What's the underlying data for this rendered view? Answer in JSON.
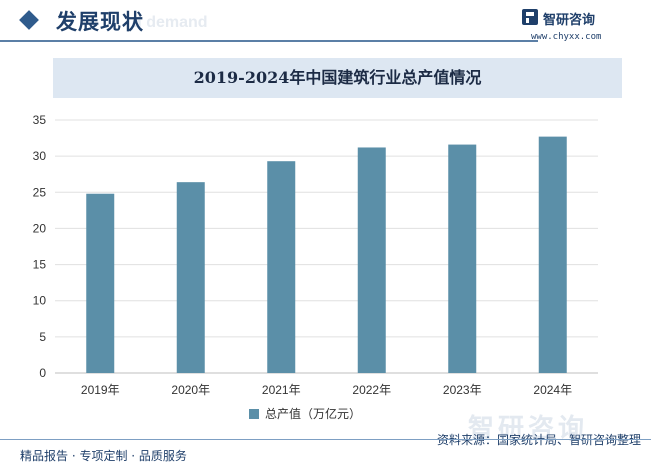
{
  "header": {
    "title": "发展现状",
    "title_ghost": "d demand"
  },
  "brand": {
    "name": "智研咨询",
    "url": "www.chyxx.com"
  },
  "chart_data": {
    "type": "bar",
    "title": "2019-2024年中国建筑行业总产值情况",
    "categories": [
      "2019年",
      "2020年",
      "2021年",
      "2022年",
      "2023年",
      "2024年"
    ],
    "series": [
      {
        "name": "总产值（万亿元）",
        "values": [
          24.8,
          26.4,
          29.3,
          31.2,
          31.6,
          32.7
        ]
      }
    ],
    "xlabel": "",
    "ylabel": "",
    "ylim": [
      0,
      35
    ],
    "yticks": [
      0,
      5,
      10,
      15,
      20,
      25,
      30,
      35
    ],
    "grid": true,
    "legend_position": "bottom-center",
    "bar_color": "#5b8fa8"
  },
  "footer": {
    "left": "精品报告 · 专项定制 · 品质服务",
    "source": "资料来源：国家统计局、智研咨询整理",
    "watermark": "智研咨询"
  }
}
